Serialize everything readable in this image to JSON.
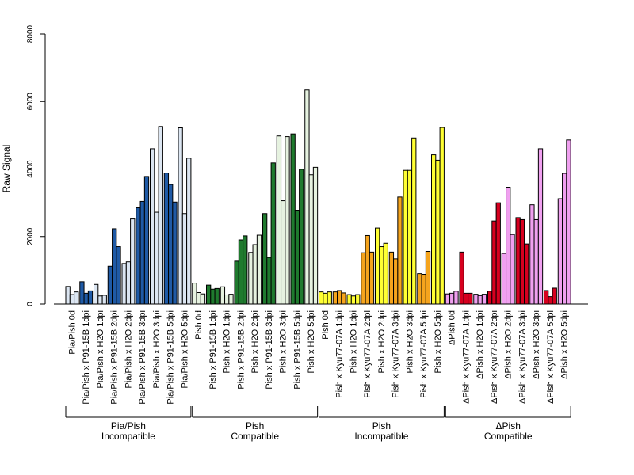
{
  "chart_data": {
    "type": "bar",
    "ylabel": "Raw Signal",
    "ylim": [
      0,
      8000
    ],
    "yticks": [
      0,
      2000,
      4000,
      6000,
      8000
    ],
    "colors": {
      "pale_blue": "#dce6f2",
      "dark_blue": "#1f5aa6",
      "pale_green": "#e6f2e0",
      "dark_green": "#1f7a2e",
      "orange": "#f5a41d",
      "yellow": "#ffff33",
      "red": "#d7001f",
      "pink": "#f0a0f0"
    },
    "categories": [
      {
        "label": "Pia/Pish 0d",
        "color": "pale_blue",
        "values": [
          520,
          280,
          360
        ]
      },
      {
        "label": "Pia/Pish x P91-15B 1dpi",
        "color": "dark_blue",
        "values": [
          660,
          320,
          390
        ]
      },
      {
        "label": "Pia/Pish x H2O 1dpi",
        "color": "pale_blue",
        "values": [
          580,
          240,
          260
        ]
      },
      {
        "label": "Pia/Pish x P91-15B 2dpi",
        "color": "dark_blue",
        "values": [
          1120,
          2230,
          1700
        ]
      },
      {
        "label": "Pia/Pish x H2O 2dpi",
        "color": "pale_blue",
        "values": [
          1200,
          1250,
          2520
        ]
      },
      {
        "label": "Pia/Pish x P91-15B 3dpi",
        "color": "dark_blue",
        "values": [
          2850,
          3040,
          3780
        ]
      },
      {
        "label": "Pia/Pish x H2O 3dpi",
        "color": "pale_blue",
        "values": [
          4600,
          2720,
          5260
        ]
      },
      {
        "label": "Pia/Pish x P91-15B 5dpi",
        "color": "dark_blue",
        "values": [
          3880,
          3540,
          3020
        ]
      },
      {
        "label": "Pia/Pish x H2O 5dpi",
        "color": "pale_blue",
        "values": [
          5220,
          2680,
          4320
        ]
      },
      {
        "label": "Pish 0d",
        "color": "pale_green",
        "values": [
          620,
          340,
          300
        ]
      },
      {
        "label": "Pish x P91-15B 1dpi",
        "color": "dark_green",
        "values": [
          560,
          440,
          460
        ]
      },
      {
        "label": "Pish x H2O 1dpi",
        "color": "pale_green",
        "values": [
          510,
          270,
          290
        ]
      },
      {
        "label": "Pish x P91-15B 2dpi",
        "color": "dark_green",
        "values": [
          1270,
          1900,
          2020
        ]
      },
      {
        "label": "Pish x H2O 2dpi",
        "color": "pale_green",
        "values": [
          1530,
          1760,
          2040
        ]
      },
      {
        "label": "Pish x P91-15B 3dpi",
        "color": "dark_green",
        "values": [
          2680,
          1380,
          4180
        ]
      },
      {
        "label": "Pish x H2O 3dpi",
        "color": "pale_green",
        "values": [
          4980,
          3060,
          4960
        ]
      },
      {
        "label": "Pish x P91-15B 5dpi",
        "color": "dark_green",
        "values": [
          5040,
          2780,
          3990
        ]
      },
      {
        "label": "Pish x H2O 5dpi",
        "color": "pale_green",
        "values": [
          6340,
          3830,
          4050
        ]
      },
      {
        "label": "Pish 0d",
        "color": "yellow",
        "values": [
          360,
          320,
          360
        ]
      },
      {
        "label": "Pish x Kyu77-07A 1dpi",
        "color": "orange",
        "values": [
          360,
          400,
          330
        ]
      },
      {
        "label": "Pish x H2O 1dpi",
        "color": "yellow",
        "values": [
          280,
          240,
          280
        ]
      },
      {
        "label": "Pish x Kyu77-07A 2dpi",
        "color": "orange",
        "values": [
          1520,
          2030,
          1540
        ]
      },
      {
        "label": "Pish x H2O 2dpi",
        "color": "yellow",
        "values": [
          2250,
          1700,
          1800
        ]
      },
      {
        "label": "Pish x Kyu77-07A 3dpi",
        "color": "orange",
        "values": [
          1540,
          1340,
          3170
        ]
      },
      {
        "label": "Pish x H2O 3dpi",
        "color": "yellow",
        "values": [
          3960,
          3960,
          4920
        ]
      },
      {
        "label": "Pish x Kyu77-07A 5dpi",
        "color": "orange",
        "values": [
          900,
          880,
          1560
        ]
      },
      {
        "label": "Pish x H2O 5dpi",
        "color": "yellow",
        "values": [
          4420,
          4260,
          5230
        ]
      },
      {
        "label": "ΔPish 0d",
        "color": "pink",
        "values": [
          300,
          320,
          380
        ]
      },
      {
        "label": "ΔPish x Kyu77-07A 1dpi",
        "color": "red",
        "values": [
          1540,
          320,
          320
        ]
      },
      {
        "label": "ΔPish x H2O 1dpi",
        "color": "pink",
        "values": [
          290,
          250,
          290
        ]
      },
      {
        "label": "ΔPish x Kyu77-07A 2dpi",
        "color": "red",
        "values": [
          380,
          2460,
          3000
        ]
      },
      {
        "label": "ΔPish x H2O 2dpi",
        "color": "pink",
        "values": [
          1500,
          3460,
          2060
        ]
      },
      {
        "label": "ΔPish x Kyu77-07A 3dpi",
        "color": "red",
        "values": [
          2560,
          2500,
          1780
        ]
      },
      {
        "label": "ΔPish x H2O 3dpi",
        "color": "pink",
        "values": [
          2940,
          2500,
          4600
        ]
      },
      {
        "label": "ΔPish x Kyu77-07A 5dpi",
        "color": "red",
        "values": [
          400,
          220,
          470
        ]
      },
      {
        "label": "ΔPish x H2O 5dpi",
        "color": "pink",
        "values": [
          3120,
          3870,
          4860
        ]
      }
    ],
    "groups": [
      {
        "line1": "Pia/Pish",
        "line2": "Incompatible",
        "first": 0,
        "last": 8
      },
      {
        "line1": "Pish",
        "line2": "Compatible",
        "first": 9,
        "last": 17
      },
      {
        "line1": "Pish",
        "line2": "Incompatible",
        "first": 18,
        "last": 26
      },
      {
        "line1": "ΔPish",
        "line2": "Compatible",
        "first": 27,
        "last": 35
      }
    ]
  }
}
